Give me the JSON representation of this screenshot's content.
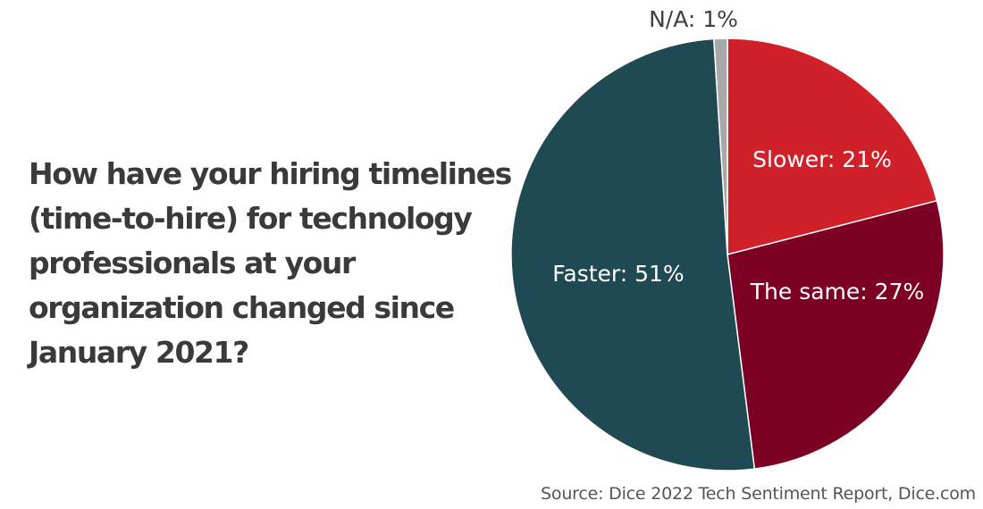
{
  "question": "How have your hiring timelines (time-to-hire) for technology professionals at your organization changed since January 2021?",
  "source": "Source: Dice 2022 Tech Sentiment Report, Dice.com",
  "chart_data": {
    "type": "pie",
    "title": "How have your hiring timelines (time-to-hire) for technology professionals at your organization changed since January 2021?",
    "slices": [
      {
        "name": "Slower",
        "value": 21,
        "label": "Slower: 21%",
        "color": "#d0202a"
      },
      {
        "name": "The same",
        "value": 27,
        "label": "The same: 27%",
        "color": "#7b0024"
      },
      {
        "name": "Faster",
        "value": 51,
        "label": "Faster: 51%",
        "color": "#1f4a54"
      },
      {
        "name": "N/A",
        "value": 1,
        "label": "N/A: 1%",
        "color": "#a8a8a8"
      }
    ],
    "start": "top",
    "direction": "clockwise",
    "legend": "none"
  }
}
